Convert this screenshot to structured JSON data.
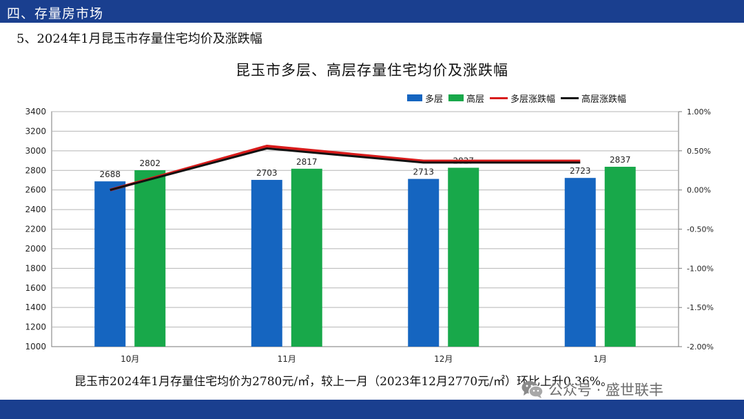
{
  "header": {
    "section_title": "四、存量房市场"
  },
  "subtitle": "5、2024年1月昆玉市存量住宅均价及涨跌幅",
  "footer": {
    "summary": "昆玉市2024年1月存量住宅均价为2780元/㎡，较上一月（2023年12月2770元/㎡）环比上升0.36%。"
  },
  "watermark": {
    "text": "公众号 · 盛世联丰",
    "icon": "wechat-icon"
  },
  "colors": {
    "bar_multi": "#1565c0",
    "bar_high": "#18a84a",
    "line_multi": "#d81b1b",
    "line_high": "#111111",
    "header_bg": "#1a3f8f"
  },
  "chart_data": {
    "type": "bar",
    "title": "昆玉市多层、高层存量住宅均价及涨跌幅",
    "categories": [
      "10月",
      "11月",
      "12月",
      "1月"
    ],
    "series": [
      {
        "name": "多层",
        "type": "bar",
        "axis": "left",
        "values": [
          2688,
          2703,
          2713,
          2723
        ]
      },
      {
        "name": "高层",
        "type": "bar",
        "axis": "left",
        "values": [
          2802,
          2817,
          2827,
          2837
        ]
      },
      {
        "name": "多层涨跌幅",
        "type": "line",
        "axis": "right",
        "values": [
          0.0,
          0.56,
          0.37,
          0.37
        ]
      },
      {
        "name": "高层涨跌幅",
        "type": "line",
        "axis": "right",
        "values": [
          0.0,
          0.53,
          0.35,
          0.35
        ]
      }
    ],
    "y_left": {
      "min": 1000,
      "max": 3400,
      "step": 200,
      "ticks": [
        "1000",
        "1200",
        "1400",
        "1600",
        "1800",
        "2000",
        "2200",
        "2400",
        "2600",
        "2800",
        "3000",
        "3200",
        "3400"
      ]
    },
    "y_right": {
      "min": -2.0,
      "max": 1.0,
      "step": 0.5,
      "ticks": [
        "-2.00%",
        "-1.50%",
        "-1.00%",
        "-0.50%",
        "0.00%",
        "0.50%",
        "1.00%"
      ]
    },
    "legend_position": "top-right",
    "grid": true
  }
}
